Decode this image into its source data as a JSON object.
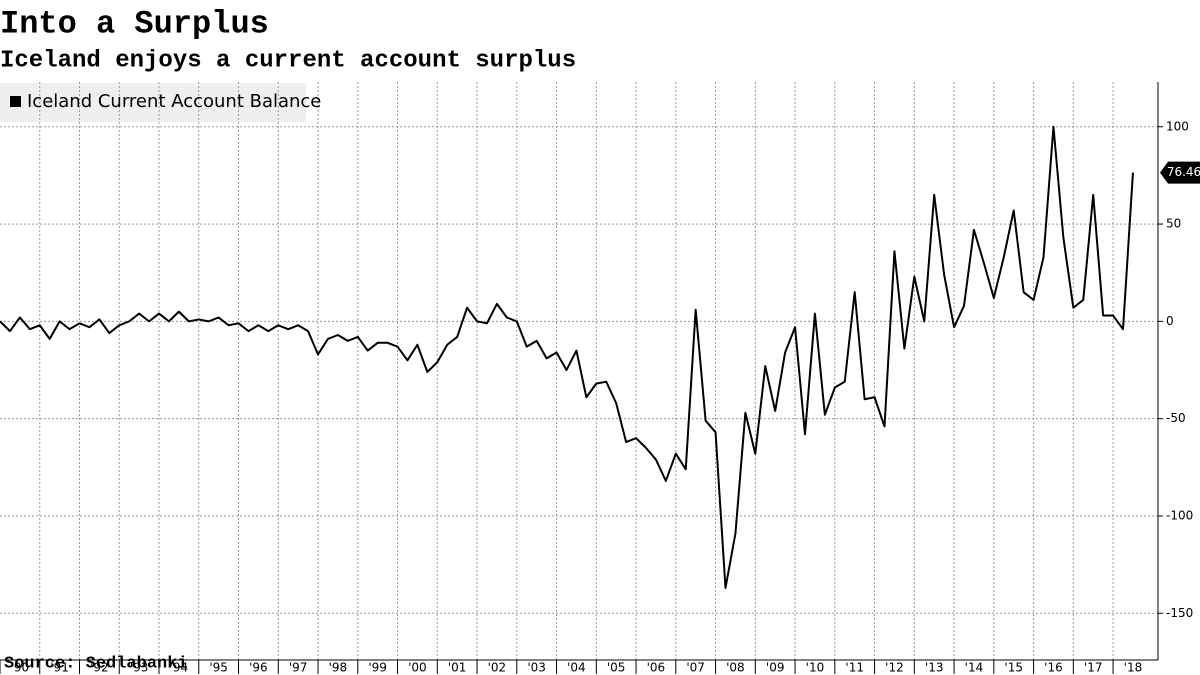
{
  "chart_data": {
    "type": "line",
    "title": "Into a Surplus",
    "subtitle": "Iceland enjoys a current account surplus",
    "source": "Source: Sedlabanki",
    "x": [
      1990,
      1990.25,
      1990.5,
      1990.75,
      1991,
      1991.25,
      1991.5,
      1991.75,
      1992,
      1992.25,
      1992.5,
      1992.75,
      1993,
      1993.25,
      1993.5,
      1993.75,
      1994,
      1994.25,
      1994.5,
      1994.75,
      1995,
      1995.25,
      1995.5,
      1995.75,
      1996,
      1996.25,
      1996.5,
      1996.75,
      1997,
      1997.25,
      1997.5,
      1997.75,
      1998,
      1998.25,
      1998.5,
      1998.75,
      1999,
      1999.25,
      1999.5,
      1999.75,
      2000,
      2000.25,
      2000.5,
      2000.75,
      2001,
      2001.25,
      2001.5,
      2001.75,
      2002,
      2002.25,
      2002.5,
      2002.75,
      2003,
      2003.25,
      2003.5,
      2003.75,
      2004,
      2004.25,
      2004.5,
      2004.75,
      2005,
      2005.25,
      2005.5,
      2005.75,
      2006,
      2006.25,
      2006.5,
      2006.75,
      2007,
      2007.25,
      2007.5,
      2007.75,
      2008,
      2008.25,
      2008.5,
      2008.75,
      2009,
      2009.25,
      2009.5,
      2009.75,
      2010,
      2010.25,
      2010.5,
      2010.75,
      2011,
      2011.25,
      2011.5,
      2011.75,
      2012,
      2012.25,
      2012.5,
      2012.75,
      2013,
      2013.25,
      2013.5,
      2013.75,
      2014,
      2014.25,
      2014.5,
      2014.75,
      2015,
      2015.25,
      2015.5,
      2015.75,
      2016,
      2016.25,
      2016.5,
      2016.75,
      2017,
      2017.25,
      2017.5,
      2017.75,
      2018,
      2018.25,
      2018.5
    ],
    "series": [
      {
        "name": "Iceland Current Account Balance",
        "color": "#000000",
        "values": [
          0,
          -5,
          2,
          -4,
          -2,
          -9,
          0,
          -4,
          -1,
          -3,
          1,
          -6,
          -2,
          0,
          4,
          0,
          4,
          0,
          5,
          0,
          1,
          0,
          2,
          -2,
          -1,
          -5,
          -2,
          -5,
          -2,
          -4,
          -2,
          -5,
          -17,
          -9,
          -7,
          -10,
          -8,
          -15,
          -11,
          -11,
          -13,
          -20,
          -12,
          -26,
          -21,
          -12,
          -8,
          7,
          0,
          -1,
          9,
          2,
          0,
          -13,
          -10,
          -19,
          -16,
          -25,
          -15,
          -39,
          -32,
          -31,
          -42,
          -62,
          -60,
          -65,
          -71,
          -82,
          -68,
          -76,
          6,
          -51,
          -57,
          -137,
          -109,
          -47,
          -68,
          -23,
          -46,
          -16,
          -3,
          -58,
          4,
          -48,
          -34,
          -31,
          15,
          -40,
          -39,
          -54,
          36,
          -14,
          23,
          0,
          65,
          24,
          -3,
          8,
          47,
          30,
          12,
          33,
          57,
          15,
          11,
          33,
          100,
          43,
          7,
          11,
          65,
          3,
          3,
          -4,
          76.46
        ]
      }
    ],
    "xlim": [
      1990,
      2019.13
    ],
    "xticks": [
      {
        "value": 1990,
        "label": "'90"
      },
      {
        "value": 1991,
        "label": "'91"
      },
      {
        "value": 1992,
        "label": "'92"
      },
      {
        "value": 1993,
        "label": "'93"
      },
      {
        "value": 1994,
        "label": "'94"
      },
      {
        "value": 1995,
        "label": "'95"
      },
      {
        "value": 1996,
        "label": "'96"
      },
      {
        "value": 1997,
        "label": "'97"
      },
      {
        "value": 1998,
        "label": "'98"
      },
      {
        "value": 1999,
        "label": "'99"
      },
      {
        "value": 2000,
        "label": "'00"
      },
      {
        "value": 2001,
        "label": "'01"
      },
      {
        "value": 2002,
        "label": "'02"
      },
      {
        "value": 2003,
        "label": "'03"
      },
      {
        "value": 2004,
        "label": "'04"
      },
      {
        "value": 2005,
        "label": "'05"
      },
      {
        "value": 2006,
        "label": "'06"
      },
      {
        "value": 2007,
        "label": "'07"
      },
      {
        "value": 2008,
        "label": "'08"
      },
      {
        "value": 2009,
        "label": "'09"
      },
      {
        "value": 2010,
        "label": "'10"
      },
      {
        "value": 2011,
        "label": "'11"
      },
      {
        "value": 2012,
        "label": "'12"
      },
      {
        "value": 2013,
        "label": "'13"
      },
      {
        "value": 2014,
        "label": "'14"
      },
      {
        "value": 2015,
        "label": "'15"
      },
      {
        "value": 2016,
        "label": "'16"
      },
      {
        "value": 2017,
        "label": "'17"
      },
      {
        "value": 2018,
        "label": "'18"
      }
    ],
    "ylim": [
      -174,
      123
    ],
    "yticks": [
      -150,
      -100,
      -50,
      0,
      50,
      100
    ],
    "grid": true
  }
}
